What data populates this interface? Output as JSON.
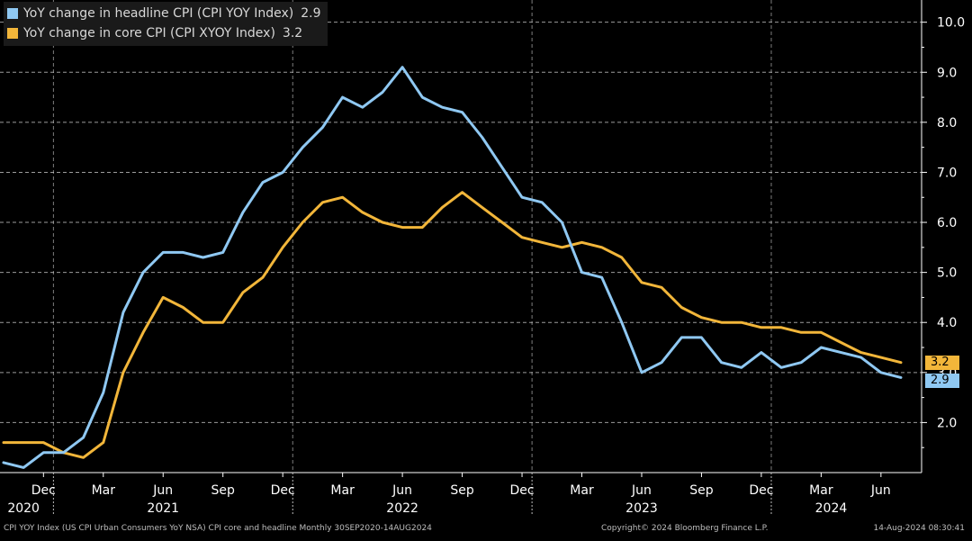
{
  "legend": {
    "headline": {
      "label": "YoY change in headline CPI (CPI YOY Index)",
      "value": "2.9",
      "color": "#8fc8f2"
    },
    "core": {
      "label": "YoY change in core CPI (CPI XYOY Index)",
      "value": "3.2",
      "color": "#f2b63a"
    }
  },
  "footer": {
    "source": "CPI YOY Index (US CPI Urban Consumers YoY NSA) CPI core and headline  Monthly 30SEP2020-14AUG2024",
    "copyright": "Copyright© 2024 Bloomberg Finance L.P.",
    "timestamp": "14-Aug-2024 08:30:41"
  },
  "end_labels": {
    "core": "3.2",
    "headline": "2.9"
  },
  "chart_data": {
    "type": "line",
    "title": "",
    "xlabel": "",
    "ylabel": "",
    "ylim": [
      1.0,
      10.3
    ],
    "yticks": [
      "2.0",
      "3.0",
      "4.0",
      "5.0",
      "6.0",
      "7.0",
      "8.0",
      "9.0",
      "10.0"
    ],
    "ytick_values": [
      2,
      3,
      4,
      5,
      6,
      7,
      8,
      9,
      10
    ],
    "y_axis_position": "right",
    "grid": true,
    "legend_position": "top-left",
    "x_month_ticks": [
      {
        "label": "Dec",
        "index": 2
      },
      {
        "label": "Mar",
        "index": 5
      },
      {
        "label": "Jun",
        "index": 8
      },
      {
        "label": "Sep",
        "index": 11
      },
      {
        "label": "Dec",
        "index": 14
      },
      {
        "label": "Mar",
        "index": 17
      },
      {
        "label": "Jun",
        "index": 20
      },
      {
        "label": "Sep",
        "index": 23
      },
      {
        "label": "Dec",
        "index": 26
      },
      {
        "label": "Mar",
        "index": 29
      },
      {
        "label": "Jun",
        "index": 32
      },
      {
        "label": "Sep",
        "index": 35
      },
      {
        "label": "Dec",
        "index": 38
      },
      {
        "label": "Mar",
        "index": 41
      },
      {
        "label": "Jun",
        "index": 44
      }
    ],
    "x_year_ticks": [
      {
        "label": "2020",
        "index": 1
      },
      {
        "label": "2021",
        "index": 8
      },
      {
        "label": "2022",
        "index": 20
      },
      {
        "label": "2023",
        "index": 32
      },
      {
        "label": "2024",
        "index": 41.5
      }
    ],
    "x": [
      "Oct 2020",
      "Nov 2020",
      "Dec 2020",
      "Jan 2021",
      "Feb 2021",
      "Mar 2021",
      "Apr 2021",
      "May 2021",
      "Jun 2021",
      "Jul 2021",
      "Aug 2021",
      "Sep 2021",
      "Oct 2021",
      "Nov 2021",
      "Dec 2021",
      "Jan 2022",
      "Feb 2022",
      "Mar 2022",
      "Apr 2022",
      "May 2022",
      "Jun 2022",
      "Jul 2022",
      "Aug 2022",
      "Sep 2022",
      "Oct 2022",
      "Nov 2022",
      "Dec 2022",
      "Jan 2023",
      "Feb 2023",
      "Mar 2023",
      "Apr 2023",
      "May 2023",
      "Jun 2023",
      "Jul 2023",
      "Aug 2023",
      "Sep 2023",
      "Oct 2023",
      "Nov 2023",
      "Dec 2023",
      "Jan 2024",
      "Feb 2024",
      "Mar 2024",
      "Apr 2024",
      "May 2024",
      "Jun 2024",
      "Jul 2024"
    ],
    "series": [
      {
        "name": "YoY change in headline CPI (CPI YOY Index)",
        "color": "#8fc8f2",
        "values": [
          1.2,
          1.1,
          1.4,
          1.4,
          1.7,
          2.6,
          4.2,
          5.0,
          5.4,
          5.4,
          5.3,
          5.4,
          6.2,
          6.8,
          7.0,
          7.5,
          7.9,
          8.5,
          8.3,
          8.6,
          9.1,
          8.5,
          8.3,
          8.2,
          7.7,
          7.1,
          6.5,
          6.4,
          6.0,
          5.0,
          4.9,
          4.0,
          3.0,
          3.2,
          3.7,
          3.7,
          3.2,
          3.1,
          3.4,
          3.1,
          3.2,
          3.5,
          3.4,
          3.3,
          3.0,
          2.9
        ]
      },
      {
        "name": "YoY change in core CPI (CPI XYOY Index)",
        "color": "#f2b63a",
        "values": [
          1.6,
          1.6,
          1.6,
          1.4,
          1.3,
          1.6,
          3.0,
          3.8,
          4.5,
          4.3,
          4.0,
          4.0,
          4.6,
          4.9,
          5.5,
          6.0,
          6.4,
          6.5,
          6.2,
          6.0,
          5.9,
          5.9,
          6.3,
          6.6,
          6.3,
          6.0,
          5.7,
          5.6,
          5.5,
          5.6,
          5.5,
          5.3,
          4.8,
          4.7,
          4.3,
          4.1,
          4.0,
          4.0,
          3.9,
          3.9,
          3.8,
          3.8,
          3.6,
          3.4,
          3.3,
          3.2
        ]
      }
    ]
  }
}
